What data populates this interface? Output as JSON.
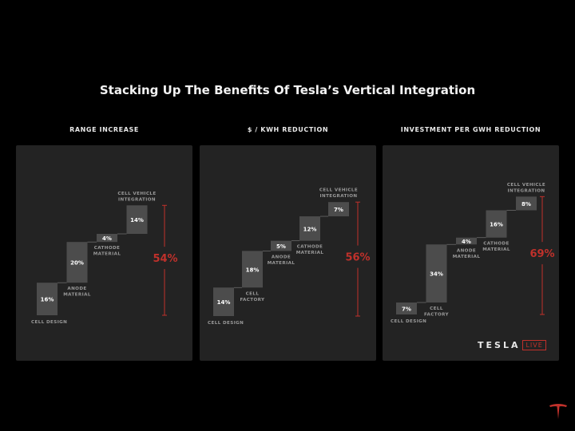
{
  "title": "Stacking Up The Benefits Of Tesla’s Vertical Integration",
  "colors": {
    "bar": "#4c4c4c",
    "accent": "#c0312b",
    "panel": "#232323",
    "label": "#9a9a9a"
  },
  "logo": {
    "wordmark": "TESLA",
    "badge": "LIVE",
    "corner_icon": "tesla-t-icon"
  },
  "chart_data": [
    {
      "type": "waterfall",
      "title": "RANGE INCREASE",
      "categories": [
        [
          "CELL DESIGN"
        ],
        [
          "ANODE",
          "MATERIAL"
        ],
        [
          "CATHODE",
          "MATERIAL"
        ],
        [
          "CELL VEHICLE",
          "INTEGRATION"
        ]
      ],
      "values": [
        16,
        20,
        4,
        14
      ],
      "value_labels": [
        "16%",
        "20%",
        "4%",
        "14%"
      ],
      "total": 54,
      "total_label": "54%"
    },
    {
      "type": "waterfall",
      "title": "$ / KWH REDUCTION",
      "categories": [
        [
          "CELL DESIGN"
        ],
        [
          "CELL",
          "FACTORY"
        ],
        [
          "ANODE",
          "MATERIAL"
        ],
        [
          "CATHODE",
          "MATERIAL"
        ],
        [
          "CELL VEHICLE",
          "INTEGRATION"
        ]
      ],
      "values": [
        14,
        18,
        5,
        12,
        7
      ],
      "value_labels": [
        "14%",
        "18%",
        "5%",
        "12%",
        "7%"
      ],
      "total": 56,
      "total_label": "56%"
    },
    {
      "type": "waterfall",
      "title": "INVESTMENT PER GWH REDUCTION",
      "categories": [
        [
          "CELL DESIGN"
        ],
        [
          "CELL",
          "FACTORY"
        ],
        [
          "ANODE",
          "MATERIAL"
        ],
        [
          "CATHODE",
          "MATERIAL"
        ],
        [
          "CELL VEHICLE",
          "INTEGRATION"
        ]
      ],
      "values": [
        7,
        34,
        4,
        16,
        8
      ],
      "value_labels": [
        "7%",
        "34%",
        "4%",
        "16%",
        "8%"
      ],
      "total": 69,
      "total_label": "69%"
    }
  ]
}
